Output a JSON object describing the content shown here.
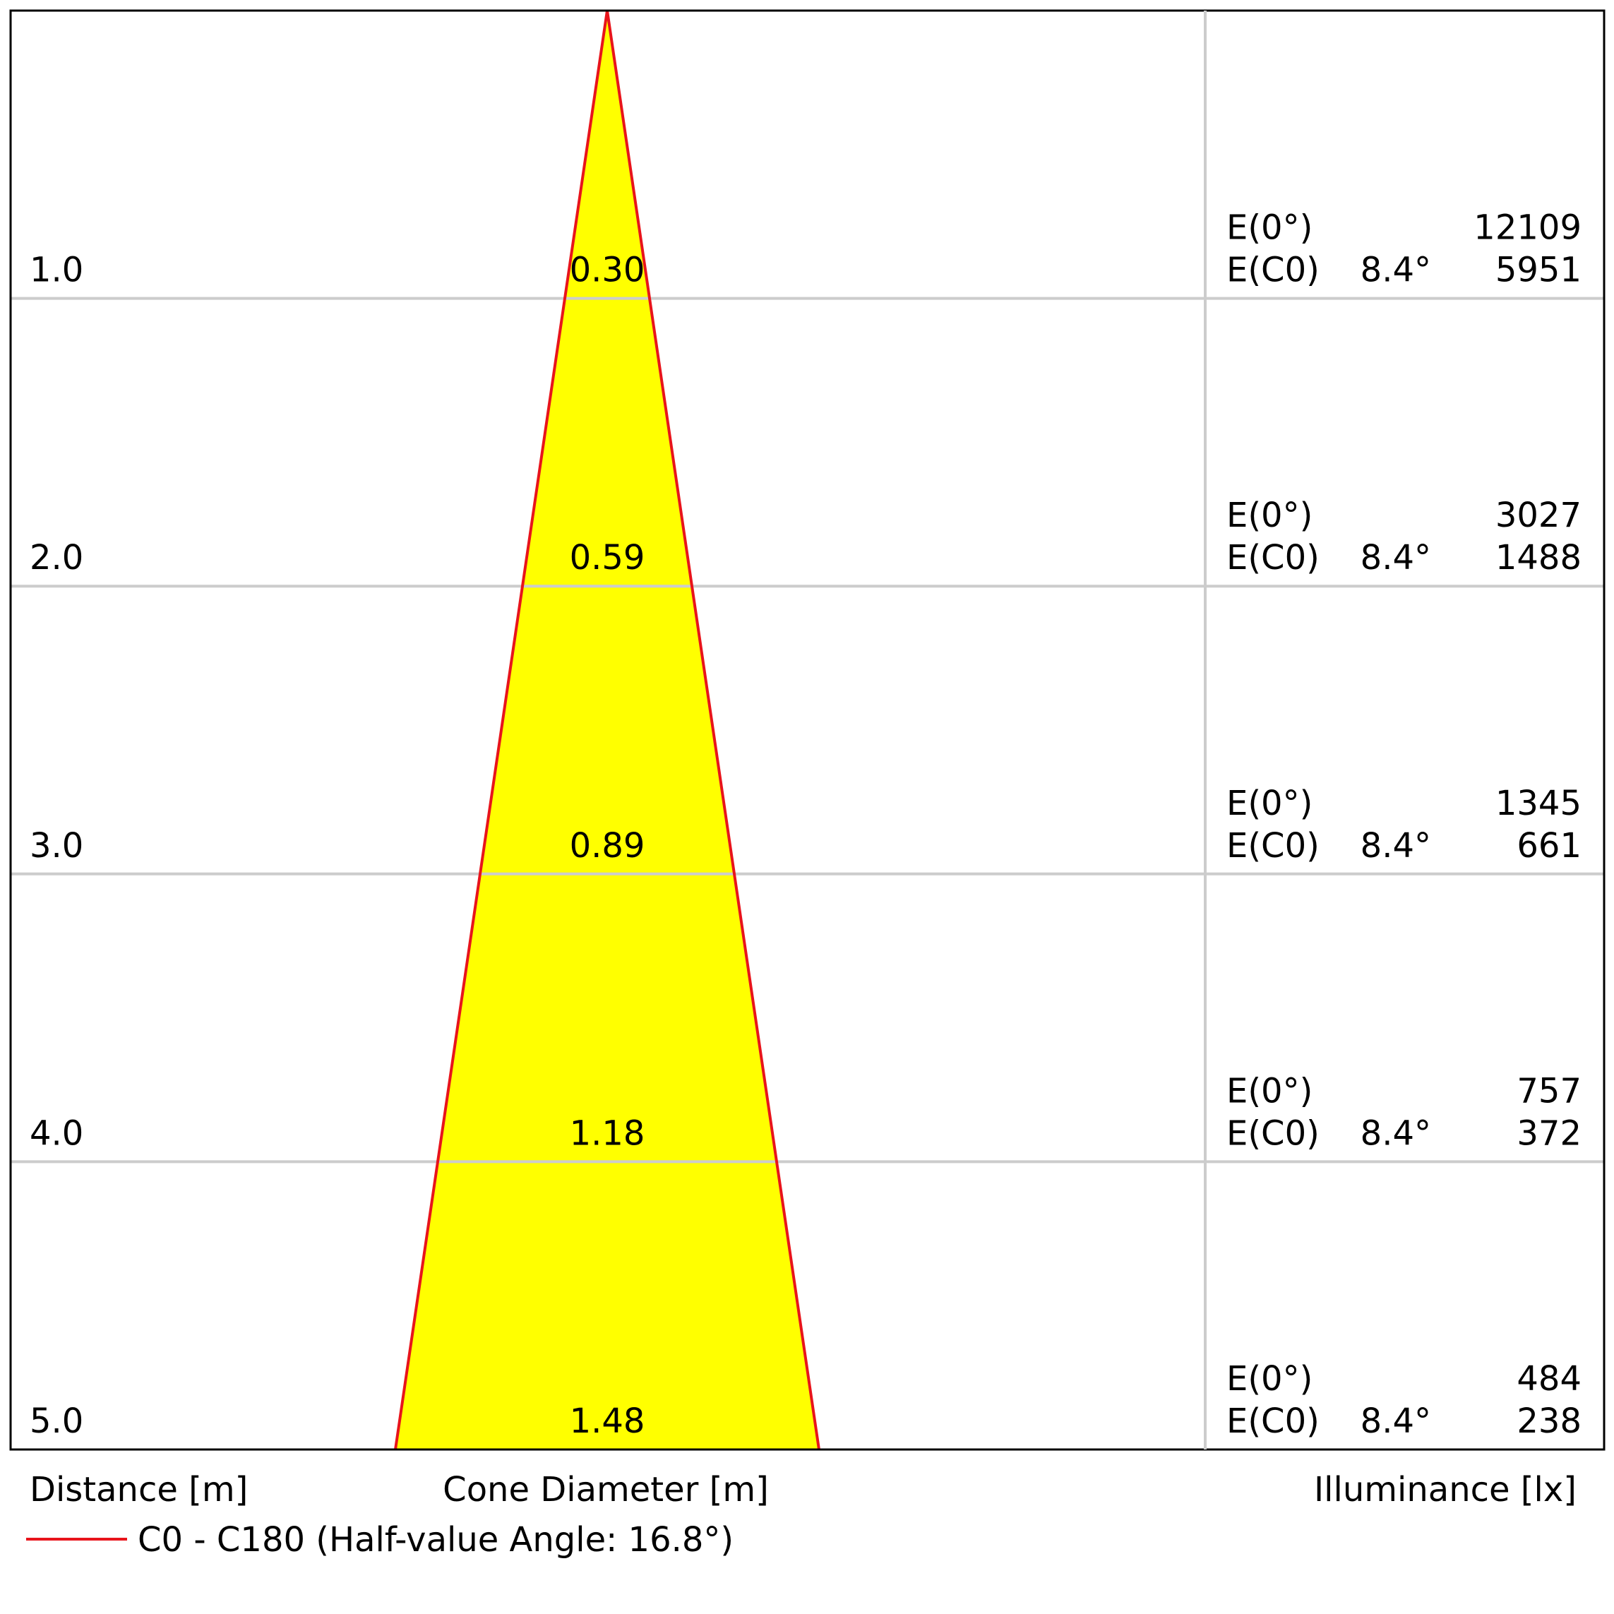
{
  "chart_data": {
    "type": "cone",
    "x_axis_label": "Distance [m]",
    "cone_axis_label": "Cone Diameter [m]",
    "illuminance_axis_label": "Illuminance [lx]",
    "legend": {
      "label": "C0 - C180 (Half-value Angle: 16.8°)",
      "color": "#e8141b"
    },
    "cone_fill_color": "#ffff00",
    "distance_max": 5.0,
    "rows": [
      {
        "distance": 1.0,
        "distance_label": "1.0",
        "diameter": 0.3,
        "diameter_label": "0.30",
        "e0_label": "E(0°)",
        "e0_value": "12109",
        "ec0_label": "E(C0)",
        "ec0_angle": "8.4°",
        "ec0_value": "5951"
      },
      {
        "distance": 2.0,
        "distance_label": "2.0",
        "diameter": 0.59,
        "diameter_label": "0.59",
        "e0_label": "E(0°)",
        "e0_value": "3027",
        "ec0_label": "E(C0)",
        "ec0_angle": "8.4°",
        "ec0_value": "1488"
      },
      {
        "distance": 3.0,
        "distance_label": "3.0",
        "diameter": 0.89,
        "diameter_label": "0.89",
        "e0_label": "E(0°)",
        "e0_value": "1345",
        "ec0_label": "E(C0)",
        "ec0_angle": "8.4°",
        "ec0_value": "661"
      },
      {
        "distance": 4.0,
        "distance_label": "4.0",
        "diameter": 1.18,
        "diameter_label": "1.18",
        "e0_label": "E(0°)",
        "e0_value": "757",
        "ec0_label": "E(C0)",
        "ec0_angle": "8.4°",
        "ec0_value": "372"
      },
      {
        "distance": 5.0,
        "distance_label": "5.0",
        "diameter": 1.48,
        "diameter_label": "1.48",
        "e0_label": "E(0°)",
        "e0_value": "484",
        "ec0_label": "E(C0)",
        "ec0_angle": "8.4°",
        "ec0_value": "238"
      }
    ]
  }
}
